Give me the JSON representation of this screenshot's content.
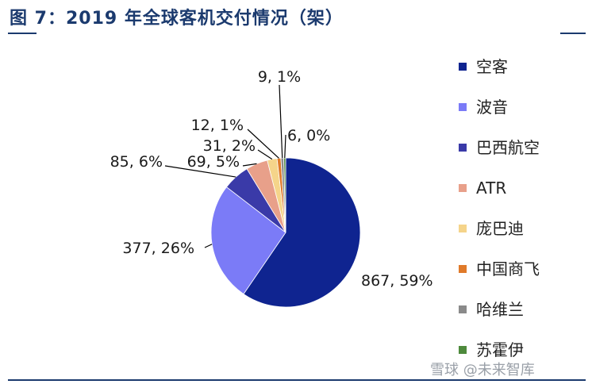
{
  "title": "图 7：2019 年全球客机交付情况（架）",
  "watermark": "雪球 @未来智库",
  "chart_data": {
    "type": "pie",
    "slices": [
      {
        "name": "空客",
        "value": 867,
        "pct": "59%",
        "label": "867, 59%",
        "color": "#0f2490"
      },
      {
        "name": "波音",
        "value": 377,
        "pct": "26%",
        "label": "377, 26%",
        "color": "#7b7bf7"
      },
      {
        "name": "巴西航空",
        "value": 85,
        "pct": "6%",
        "label": "85, 6%",
        "color": "#3a3aa8"
      },
      {
        "name": "ATR",
        "value": 69,
        "pct": "5%",
        "label": "69, 5%",
        "color": "#e8a08a"
      },
      {
        "name": "庞巴迪",
        "value": 31,
        "pct": "2%",
        "label": "31, 2%",
        "color": "#f5d48a"
      },
      {
        "name": "中国商飞",
        "value": 12,
        "pct": "1%",
        "label": "12, 1%",
        "color": "#e07a2a"
      },
      {
        "name": "哈维兰",
        "value": 9,
        "pct": "1%",
        "label": "9, 1%",
        "color": "#8a8a8a"
      },
      {
        "name": "苏霍伊",
        "value": 6,
        "pct": "0%",
        "label": "6, 0%",
        "color": "#4e8a3c"
      }
    ],
    "legend_position": "right"
  }
}
